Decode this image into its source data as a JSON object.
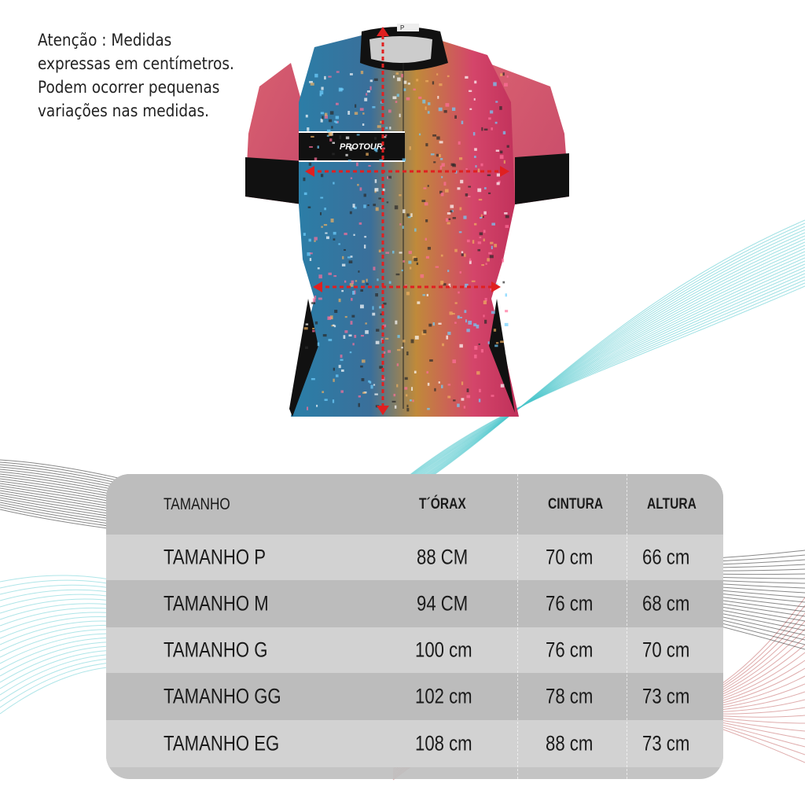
{
  "note": {
    "lines": [
      "Atenção : Medidas",
      "expressas em centímetros.",
      "Podem ocorrer pequenas",
      "variações nas medidas."
    ]
  },
  "jersey": {
    "brand": "PROTOUR",
    "tag": "P"
  },
  "table": {
    "headers": [
      "TAMANHO",
      "T´ÓRAX",
      "CINTURA",
      "ALTURA"
    ],
    "rows": [
      {
        "size": "TAMANHO P",
        "torax": "88 CM",
        "cintura": "70 cm",
        "altura": "66 cm"
      },
      {
        "size": "TAMANHO M",
        "torax": "94 CM",
        "cintura": "76 cm",
        "altura": "68 cm"
      },
      {
        "size": "TAMANHO G",
        "torax": "100 cm",
        "cintura": "76 cm",
        "altura": "70 cm"
      },
      {
        "size": "TAMANHO GG",
        "torax": "102 cm",
        "cintura": "78 cm",
        "altura": "73 cm"
      },
      {
        "size": "TAMANHO EG",
        "torax": "108 cm",
        "cintura": "88 cm",
        "altura": "73 cm"
      }
    ]
  },
  "colors": {
    "arrow": "#e02020",
    "wave_cyan": "#4cc6cc",
    "wave_black": "#111111",
    "wave_red": "#b03030"
  }
}
